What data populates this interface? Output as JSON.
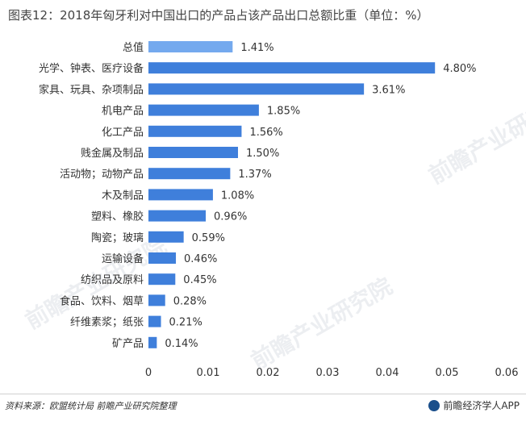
{
  "title": "图表12：2018年匈牙利对中国出口的产品占该产品出口总额比重（单位：%）",
  "footer": {
    "source": "资料来源：欧盟统计局 前瞻产业研究院整理",
    "brand": "前瞻经济学人APP"
  },
  "watermark": "前瞻产业研究院",
  "colors": {
    "bar": "#3f7fdb",
    "bar_highlight": "#74a9ee"
  },
  "chart_data": {
    "type": "bar",
    "orientation": "horizontal",
    "categories": [
      "总值",
      "光学、钟表、医疗设备",
      "家具、玩具、杂项制品",
      "机电产品",
      "化工产品",
      "贱金属及制品",
      "活动物；动物产品",
      "木及制品",
      "塑料、橡胶",
      "陶瓷；玻璃",
      "运输设备",
      "纺织品及原料",
      "食品、饮料、烟草",
      "纤维素浆；纸张",
      "矿产品"
    ],
    "values": [
      0.0141,
      0.048,
      0.0361,
      0.0185,
      0.0156,
      0.015,
      0.0137,
      0.0108,
      0.0096,
      0.0059,
      0.0046,
      0.0045,
      0.0028,
      0.0021,
      0.0014
    ],
    "data_labels": [
      "1.41%",
      "4.80%",
      "3.61%",
      "1.85%",
      "1.56%",
      "1.50%",
      "1.37%",
      "1.08%",
      "0.96%",
      "0.59%",
      "0.46%",
      "0.45%",
      "0.28%",
      "0.21%",
      "0.14%"
    ],
    "highlight_index": 0,
    "xlim": [
      0,
      0.06
    ],
    "xticks": [
      "0",
      "0.01",
      "0.02",
      "0.03",
      "0.04",
      "0.05",
      "0.06"
    ],
    "grid": false,
    "legend": "none"
  }
}
